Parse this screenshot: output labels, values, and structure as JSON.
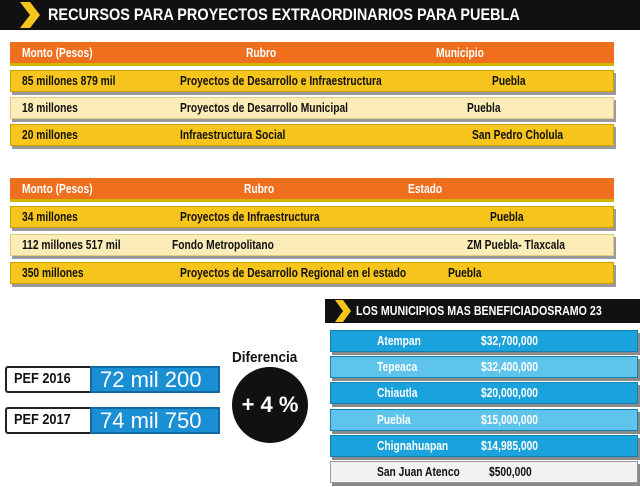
{
  "header": {
    "title": "RECURSOS PARA PROYECTOS EXTRAORDINARIOS PARA PUEBLA"
  },
  "table_1": {
    "columns": [
      "Monto (Pesos)",
      "Rubro",
      "Municipio"
    ],
    "rows": [
      [
        "85 millones 879 mil",
        "Proyectos de Desarrollo e Infraestructura",
        "Puebla"
      ],
      [
        "18 millones",
        "Proyectos de Desarrollo Municipal",
        "Puebla"
      ],
      [
        "20 millones",
        "Infraestructura Social",
        "San Pedro Cholula"
      ]
    ]
  },
  "table_2": {
    "columns": [
      "Monto (Pesos)",
      "Rubro",
      "Estado"
    ],
    "rows": [
      [
        "34 millones",
        "Proyectos de Infraestructura",
        "Puebla"
      ],
      [
        "112 millones 517 mil",
        "Fondo Metropolitano",
        "ZM Puebla- Tlaxcala"
      ],
      [
        "350 millones",
        "Proyectos de Desarrollo Regional en el estado",
        "Puebla"
      ]
    ]
  },
  "municipios": {
    "title": "LOS MUNICIPIOS MAS BENEFICIADOSRAMO 23",
    "rows": [
      [
        "Atempan",
        "$32,700,000"
      ],
      [
        "Tepeaca",
        "$32,400,000"
      ],
      [
        "Chiautla",
        "$20,000,000"
      ],
      [
        "Puebla",
        "$15,000,000"
      ],
      [
        "Chignahuapan",
        "$14,985,000"
      ],
      [
        "San Juan Atenco",
        "$500,000"
      ]
    ]
  },
  "pef": {
    "rows": [
      {
        "label": "PEF 2016",
        "value": "72 mil 200"
      },
      {
        "label": "PEF 2017",
        "value": "74 mil 750"
      }
    ],
    "difference_label": "Diferencia",
    "difference": "+ 4 %"
  }
}
